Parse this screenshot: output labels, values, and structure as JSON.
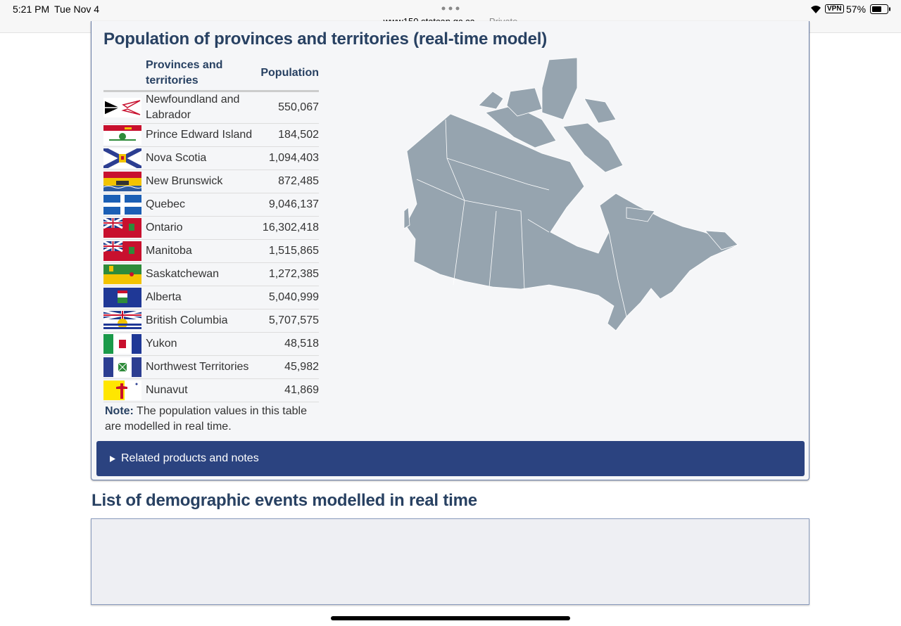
{
  "status_bar": {
    "time": "5:21 PM",
    "date": "Tue Nov 4",
    "url": "www150.statcan.gc.ca",
    "private": "— Private",
    "vpn": "VPN",
    "battery": "57%"
  },
  "section": {
    "title": "Population of provinces and territories (real-time model)",
    "table": {
      "headers": [
        "Provinces and territories",
        "Population"
      ],
      "rows": [
        [
          "Newfoundland and Labrador",
          "550,067"
        ],
        [
          "Prince Edward Island",
          "184,502"
        ],
        [
          "Nova Scotia",
          "1,094,403"
        ],
        [
          "New Brunswick",
          "872,485"
        ],
        [
          "Quebec",
          "9,046,137"
        ],
        [
          "Ontario",
          "16,302,418"
        ],
        [
          "Manitoba",
          "1,515,865"
        ],
        [
          "Saskatchewan",
          "1,272,385"
        ],
        [
          "Alberta",
          "5,040,999"
        ],
        [
          "British Columbia",
          "5,707,575"
        ],
        [
          "Yukon",
          "48,518"
        ],
        [
          "Northwest Territories",
          "45,982"
        ],
        [
          "Nunavut",
          "41,869"
        ]
      ]
    },
    "note": {
      "label": "Note:",
      "text": "The population values in this table are modelled in real time."
    },
    "details": "Related products and notes"
  },
  "events": {
    "title": "List of demographic events modelled in real time"
  }
}
